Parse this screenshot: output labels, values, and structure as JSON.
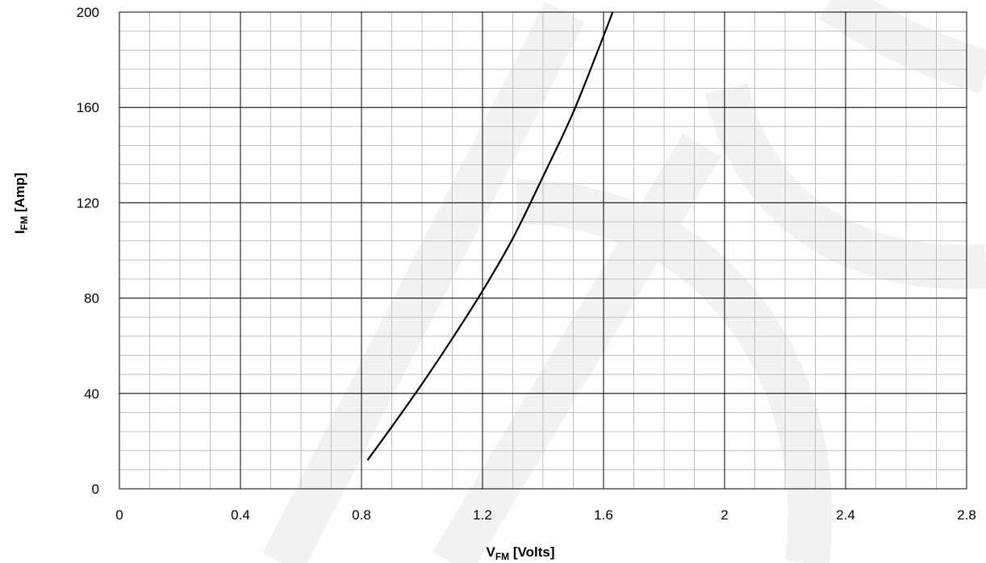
{
  "chart_data": {
    "type": "line",
    "title": "",
    "xlabel": {
      "main": "V",
      "sub": "FM",
      "rest": " [Volts]"
    },
    "ylabel": {
      "main": "I",
      "sub": "FM",
      "rest": "  [Amp]"
    },
    "xlim": [
      0,
      2.8
    ],
    "ylim": [
      0,
      200
    ],
    "x_ticks": [
      "0",
      "0.4",
      "0.8",
      "1.2",
      "1.6",
      "2",
      "2.4",
      "2.8"
    ],
    "y_ticks": [
      "0",
      "40",
      "80",
      "120",
      "160",
      "200"
    ],
    "x_minor_step": 0.1,
    "y_minor_step": 8,
    "grid": true,
    "legend": "none",
    "series": [
      {
        "color": "#000000",
        "x": [
          0.82,
          0.9,
          1.0,
          1.1,
          1.2,
          1.3,
          1.4,
          1.5,
          1.6,
          1.63
        ],
        "y": [
          12,
          26,
          44,
          63,
          83,
          105,
          131,
          158,
          190,
          200
        ]
      }
    ],
    "colors": {
      "major_grid": "#000000",
      "minor_grid": "#bfbfbf",
      "line": "#000000",
      "watermark": "#f2f2f2"
    }
  }
}
